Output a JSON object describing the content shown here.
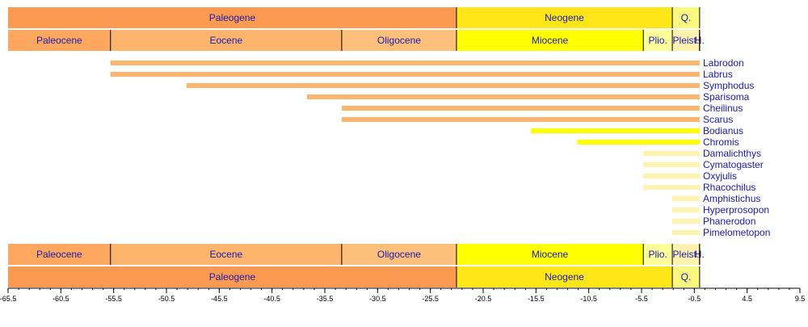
{
  "chart_data": {
    "type": "bar",
    "x_axis": {
      "ticks": [
        "-65.5",
        "-60.5",
        "-55.5",
        "-50.5",
        "-45.5",
        "-40.5",
        "-35.5",
        "-30.5",
        "-25.5",
        "-20.5",
        "-15.5",
        "-10.5",
        "-5.5",
        "-0.5",
        "4.5",
        "9.5"
      ],
      "xlim": [
        -65.5,
        9.5
      ],
      "minor_tick_step": 1
    },
    "periods": [
      {
        "label": "Paleogene",
        "start": -65.5,
        "end": -23.03,
        "color": "#fd9a52"
      },
      {
        "label": "Neogene",
        "start": -23.03,
        "end": -2.588,
        "color": "#ffe619"
      },
      {
        "label": "Q.",
        "start": -2.588,
        "end": 0,
        "color": "#f9f97f"
      }
    ],
    "epochs": [
      {
        "label": "Paleocene",
        "start": -65.5,
        "end": -55.8,
        "color": "#fda75f"
      },
      {
        "label": "Eocene",
        "start": -55.8,
        "end": -33.9,
        "color": "#fdb46c"
      },
      {
        "label": "Oligocene",
        "start": -33.9,
        "end": -23.03,
        "color": "#fdc07a"
      },
      {
        "label": "Miocene",
        "start": -23.03,
        "end": -5.332,
        "color": "#ffff00"
      },
      {
        "label": "Plio.",
        "start": -5.332,
        "end": -2.588,
        "color": "#ffff99"
      },
      {
        "label": "Pleist.",
        "start": -2.588,
        "end": -0.0117,
        "color": "#fff2ae"
      },
      {
        "label": "H.",
        "start": -0.0117,
        "end": 0,
        "color": "#feebd2"
      }
    ],
    "taxa": [
      {
        "name": "Labrodon",
        "start": -55.8,
        "end": 0,
        "color": "#fdb46c"
      },
      {
        "name": "Labrus",
        "start": -55.8,
        "end": 0,
        "color": "#fdb46c"
      },
      {
        "name": "Symphodus",
        "start": -48.6,
        "end": 0,
        "color": "#fdb46c"
      },
      {
        "name": "Sparisoma",
        "start": -37.2,
        "end": 0,
        "color": "#fdb46c"
      },
      {
        "name": "Cheilinus",
        "start": -33.9,
        "end": 0,
        "color": "#fdb46c"
      },
      {
        "name": "Scarus",
        "start": -33.9,
        "end": 0,
        "color": "#fdb46c"
      },
      {
        "name": "Bodianus",
        "start": -15.97,
        "end": 0,
        "color": "#ffff00"
      },
      {
        "name": "Chromis",
        "start": -11.608,
        "end": 0,
        "color": "#ffff00"
      },
      {
        "name": "Damalichthys",
        "start": -5.332,
        "end": 0,
        "color": "#fff2ae"
      },
      {
        "name": "Cymatogaster",
        "start": -5.332,
        "end": 0,
        "color": "#fff2ae"
      },
      {
        "name": "Oxyjulis",
        "start": -5.332,
        "end": 0,
        "color": "#fff2ae"
      },
      {
        "name": "Rhacochilus",
        "start": -5.332,
        "end": 0,
        "color": "#fff2ae"
      },
      {
        "name": "Amphistichus",
        "start": -2.588,
        "end": 0,
        "color": "#fff2ae"
      },
      {
        "name": "Hyperprosopon",
        "start": -2.588,
        "end": 0,
        "color": "#fff2ae"
      },
      {
        "name": "Phanerodon",
        "start": -2.588,
        "end": 0,
        "color": "#fff2ae"
      },
      {
        "name": "Pimelometopon",
        "start": -2.588,
        "end": 0,
        "color": "#fff2ae"
      }
    ]
  }
}
